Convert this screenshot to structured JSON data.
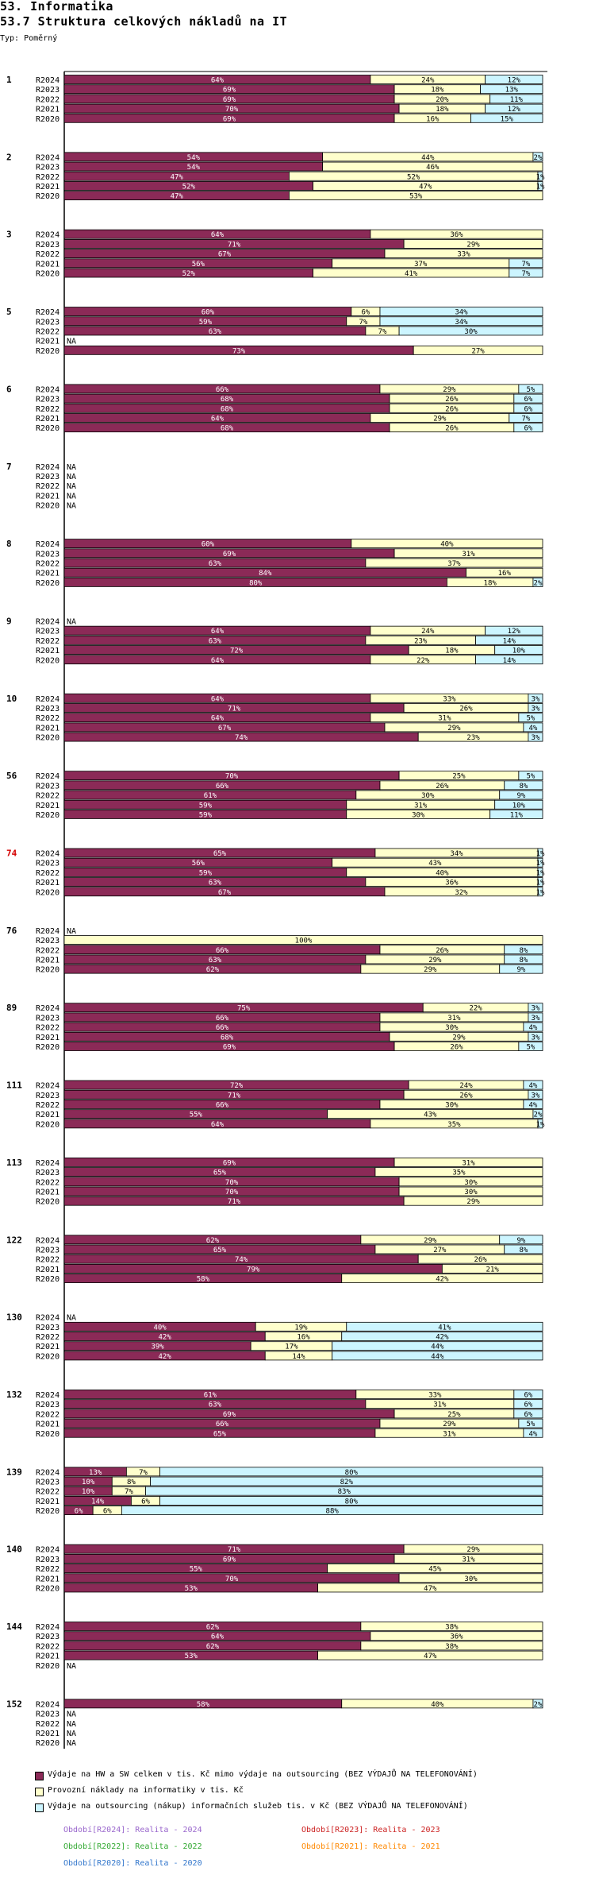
{
  "header": {
    "title1": "53. Informatika",
    "title2": "53.7 Struktura celkových nákladů na IT",
    "typ": "Typ: Poměrný"
  },
  "colors": {
    "hw_sw": "#8b2a57",
    "provoz": "#ffffcc",
    "outsourcing": "#ccf5ff",
    "highlight_group": "#d40000"
  },
  "chart_data": {
    "type": "bar",
    "orientation": "horizontal",
    "stacked": true,
    "unit": "%",
    "series_names": [
      "Výdaje na HW a SW celkem v tis. Kč mimo výdaje na outsourcing (BEZ VÝDAJŮ NA TELEFONOVÁNÍ)",
      "Provozní náklady na informatiky v tis. Kč",
      "Výdaje na outsourcing (nákup) informačních služeb tis. v Kč (BEZ VÝDAJŮ NA TELEFONOVÁNÍ)"
    ],
    "groups": [
      {
        "id": "1",
        "rows": [
          {
            "year": "R2024",
            "values": [
              64,
              24,
              12
            ]
          },
          {
            "year": "R2023",
            "values": [
              69,
              18,
              13
            ]
          },
          {
            "year": "R2022",
            "values": [
              69,
              20,
              11
            ]
          },
          {
            "year": "R2021",
            "values": [
              70,
              18,
              12
            ]
          },
          {
            "year": "R2020",
            "values": [
              69,
              16,
              15
            ]
          }
        ]
      },
      {
        "id": "2",
        "rows": [
          {
            "year": "R2024",
            "values": [
              54,
              44,
              2
            ]
          },
          {
            "year": "R2023",
            "values": [
              54,
              46,
              0
            ]
          },
          {
            "year": "R2022",
            "values": [
              47,
              52,
              1
            ]
          },
          {
            "year": "R2021",
            "values": [
              52,
              47,
              1
            ]
          },
          {
            "year": "R2020",
            "values": [
              47,
              53,
              0
            ]
          }
        ]
      },
      {
        "id": "3",
        "rows": [
          {
            "year": "R2024",
            "values": [
              64,
              36,
              0
            ]
          },
          {
            "year": "R2023",
            "values": [
              71,
              29,
              0
            ]
          },
          {
            "year": "R2022",
            "values": [
              67,
              33,
              0
            ]
          },
          {
            "year": "R2021",
            "values": [
              56,
              37,
              7
            ]
          },
          {
            "year": "R2020",
            "values": [
              52,
              41,
              7
            ]
          }
        ]
      },
      {
        "id": "5",
        "rows": [
          {
            "year": "R2024",
            "values": [
              60,
              6,
              34
            ]
          },
          {
            "year": "R2023",
            "values": [
              59,
              7,
              34
            ]
          },
          {
            "year": "R2022",
            "values": [
              63,
              7,
              30
            ]
          },
          {
            "year": "R2021",
            "na": "NA"
          },
          {
            "year": "R2020",
            "values": [
              73,
              27,
              0
            ]
          }
        ]
      },
      {
        "id": "6",
        "rows": [
          {
            "year": "R2024",
            "values": [
              66,
              29,
              5
            ]
          },
          {
            "year": "R2023",
            "values": [
              68,
              26,
              6
            ]
          },
          {
            "year": "R2022",
            "values": [
              68,
              26,
              6
            ]
          },
          {
            "year": "R2021",
            "values": [
              64,
              29,
              7
            ]
          },
          {
            "year": "R2020",
            "values": [
              68,
              26,
              6
            ]
          }
        ]
      },
      {
        "id": "7",
        "rows": [
          {
            "year": "R2024",
            "na": "NA"
          },
          {
            "year": "R2023",
            "na": "NA"
          },
          {
            "year": "R2022",
            "na": "NA"
          },
          {
            "year": "R2021",
            "na": "NA"
          },
          {
            "year": "R2020",
            "na": "NA"
          }
        ]
      },
      {
        "id": "8",
        "rows": [
          {
            "year": "R2024",
            "values": [
              60,
              40,
              0
            ]
          },
          {
            "year": "R2023",
            "values": [
              69,
              31,
              0
            ]
          },
          {
            "year": "R2022",
            "values": [
              63,
              37,
              0
            ]
          },
          {
            "year": "R2021",
            "values": [
              84,
              16,
              0
            ]
          },
          {
            "year": "R2020",
            "values": [
              80,
              18,
              2
            ]
          }
        ]
      },
      {
        "id": "9",
        "rows": [
          {
            "year": "R2024",
            "na": "NA"
          },
          {
            "year": "R2023",
            "values": [
              64,
              24,
              12
            ]
          },
          {
            "year": "R2022",
            "values": [
              63,
              23,
              14
            ]
          },
          {
            "year": "R2021",
            "values": [
              72,
              18,
              10
            ]
          },
          {
            "year": "R2020",
            "values": [
              64,
              22,
              14
            ]
          }
        ]
      },
      {
        "id": "10",
        "rows": [
          {
            "year": "R2024",
            "values": [
              64,
              33,
              3
            ]
          },
          {
            "year": "R2023",
            "values": [
              71,
              26,
              3
            ]
          },
          {
            "year": "R2022",
            "values": [
              64,
              31,
              5
            ]
          },
          {
            "year": "R2021",
            "values": [
              67,
              29,
              4
            ]
          },
          {
            "year": "R2020",
            "values": [
              74,
              23,
              3
            ]
          }
        ]
      },
      {
        "id": "56",
        "rows": [
          {
            "year": "R2024",
            "values": [
              70,
              25,
              5
            ]
          },
          {
            "year": "R2023",
            "values": [
              66,
              26,
              8
            ]
          },
          {
            "year": "R2022",
            "values": [
              61,
              30,
              9
            ]
          },
          {
            "year": "R2021",
            "values": [
              59,
              31,
              10
            ]
          },
          {
            "year": "R2020",
            "values": [
              59,
              30,
              11
            ]
          }
        ]
      },
      {
        "id": "74",
        "highlight": true,
        "rows": [
          {
            "year": "R2024",
            "values": [
              65,
              34,
              1
            ]
          },
          {
            "year": "R2023",
            "values": [
              56,
              43,
              1
            ]
          },
          {
            "year": "R2022",
            "values": [
              59,
              40,
              1
            ]
          },
          {
            "year": "R2021",
            "values": [
              63,
              36,
              1
            ]
          },
          {
            "year": "R2020",
            "values": [
              67,
              32,
              1
            ]
          }
        ]
      },
      {
        "id": "76",
        "rows": [
          {
            "year": "R2024",
            "na": "NA"
          },
          {
            "year": "R2023",
            "values": [
              0,
              100,
              0
            ]
          },
          {
            "year": "R2022",
            "values": [
              66,
              26,
              8
            ]
          },
          {
            "year": "R2021",
            "values": [
              63,
              29,
              8
            ]
          },
          {
            "year": "R2020",
            "values": [
              62,
              29,
              9
            ]
          }
        ]
      },
      {
        "id": "89",
        "rows": [
          {
            "year": "R2024",
            "values": [
              75,
              22,
              3
            ]
          },
          {
            "year": "R2023",
            "values": [
              66,
              31,
              3
            ]
          },
          {
            "year": "R2022",
            "values": [
              66,
              30,
              4
            ]
          },
          {
            "year": "R2021",
            "values": [
              68,
              29,
              3
            ]
          },
          {
            "year": "R2020",
            "values": [
              69,
              26,
              5
            ]
          }
        ]
      },
      {
        "id": "111",
        "rows": [
          {
            "year": "R2024",
            "values": [
              72,
              24,
              4
            ]
          },
          {
            "year": "R2023",
            "values": [
              71,
              26,
              3
            ]
          },
          {
            "year": "R2022",
            "values": [
              66,
              30,
              4
            ]
          },
          {
            "year": "R2021",
            "values": [
              55,
              43,
              2
            ]
          },
          {
            "year": "R2020",
            "values": [
              64,
              35,
              1
            ]
          }
        ]
      },
      {
        "id": "113",
        "rows": [
          {
            "year": "R2024",
            "values": [
              69,
              31,
              0
            ]
          },
          {
            "year": "R2023",
            "values": [
              65,
              35,
              0
            ]
          },
          {
            "year": "R2022",
            "values": [
              70,
              30,
              0
            ]
          },
          {
            "year": "R2021",
            "values": [
              70,
              30,
              0
            ]
          },
          {
            "year": "R2020",
            "values": [
              71,
              29,
              0
            ]
          }
        ]
      },
      {
        "id": "122",
        "rows": [
          {
            "year": "R2024",
            "values": [
              62,
              29,
              9
            ]
          },
          {
            "year": "R2023",
            "values": [
              65,
              27,
              8
            ]
          },
          {
            "year": "R2022",
            "values": [
              74,
              26,
              0
            ]
          },
          {
            "year": "R2021",
            "values": [
              79,
              21,
              0
            ]
          },
          {
            "year": "R2020",
            "values": [
              58,
              42,
              0
            ]
          }
        ]
      },
      {
        "id": "130",
        "rows": [
          {
            "year": "R2024",
            "na": "NA"
          },
          {
            "year": "R2023",
            "values": [
              40,
              19,
              41
            ]
          },
          {
            "year": "R2022",
            "values": [
              42,
              16,
              42
            ]
          },
          {
            "year": "R2021",
            "values": [
              39,
              17,
              44
            ]
          },
          {
            "year": "R2020",
            "values": [
              42,
              14,
              44
            ]
          }
        ]
      },
      {
        "id": "132",
        "rows": [
          {
            "year": "R2024",
            "values": [
              61,
              33,
              6
            ]
          },
          {
            "year": "R2023",
            "values": [
              63,
              31,
              6
            ]
          },
          {
            "year": "R2022",
            "values": [
              69,
              25,
              6
            ]
          },
          {
            "year": "R2021",
            "values": [
              66,
              29,
              5
            ]
          },
          {
            "year": "R2020",
            "values": [
              65,
              31,
              4
            ]
          }
        ]
      },
      {
        "id": "139",
        "rows": [
          {
            "year": "R2024",
            "values": [
              13,
              7,
              80
            ]
          },
          {
            "year": "R2023",
            "values": [
              10,
              8,
              82
            ]
          },
          {
            "year": "R2022",
            "values": [
              10,
              7,
              83
            ]
          },
          {
            "year": "R2021",
            "values": [
              14,
              6,
              80
            ]
          },
          {
            "year": "R2020",
            "values": [
              6,
              6,
              88
            ]
          }
        ]
      },
      {
        "id": "140",
        "rows": [
          {
            "year": "R2024",
            "values": [
              71,
              29,
              0
            ]
          },
          {
            "year": "R2023",
            "values": [
              69,
              31,
              0
            ]
          },
          {
            "year": "R2022",
            "values": [
              55,
              45,
              0
            ]
          },
          {
            "year": "R2021",
            "values": [
              70,
              30,
              0
            ]
          },
          {
            "year": "R2020",
            "values": [
              53,
              47,
              0
            ]
          }
        ]
      },
      {
        "id": "144",
        "rows": [
          {
            "year": "R2024",
            "values": [
              62,
              38,
              0
            ]
          },
          {
            "year": "R2023",
            "values": [
              64,
              36,
              0
            ]
          },
          {
            "year": "R2022",
            "values": [
              62,
              38,
              0
            ]
          },
          {
            "year": "R2021",
            "values": [
              53,
              47,
              0
            ]
          },
          {
            "year": "R2020",
            "na": "NA"
          }
        ]
      },
      {
        "id": "152",
        "rows": [
          {
            "year": "R2024",
            "values": [
              58,
              40,
              2
            ]
          },
          {
            "year": "R2023",
            "na": "NA"
          },
          {
            "year": "R2022",
            "na": "NA"
          },
          {
            "year": "R2021",
            "na": "NA"
          },
          {
            "year": "R2020",
            "na": "NA"
          }
        ]
      }
    ]
  },
  "legend": {
    "items": [
      {
        "label": "Výdaje na HW a SW celkem v tis. Kč mimo výdaje na outsourcing (BEZ VÝDAJŮ NA TELEFONOVÁNÍ)",
        "color": "#8b2a57"
      },
      {
        "label": "Provozní náklady na informatiky v tis. Kč",
        "color": "#ffffcc"
      },
      {
        "label": "Výdaje na outsourcing (nákup) informačních služeb tis. v Kč (BEZ VÝDAJŮ NA TELEFONOVÁNÍ)",
        "color": "#ccf5ff"
      }
    ],
    "periods": [
      {
        "text": "Období[R2024]: Realita - 2024",
        "color": "#9966cc"
      },
      {
        "text": "Období[R2023]: Realita - 2023",
        "color": "#cc2222"
      },
      {
        "text": "Období[R2022]: Realita - 2022",
        "color": "#33aa33"
      },
      {
        "text": "Období[R2021]: Realita - 2021",
        "color": "#ff8800"
      },
      {
        "text": "Období[R2020]: Realita - 2020",
        "color": "#3377cc"
      }
    ]
  }
}
